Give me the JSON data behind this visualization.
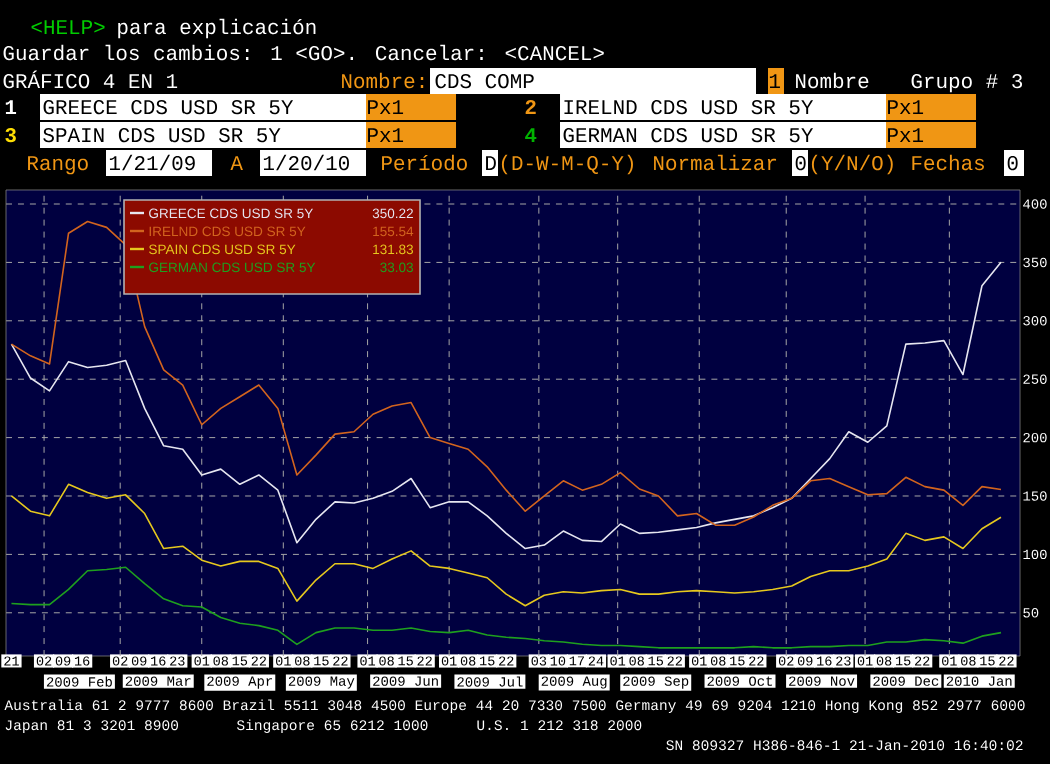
{
  "chart_data": {
    "type": "line",
    "title": "GRÁFICO 4 EN 1",
    "x": [
      "2009-01-21",
      "2009-01-28",
      "2009-02-04",
      "2009-02-11",
      "2009-02-18",
      "2009-02-25",
      "2009-03-04",
      "2009-03-11",
      "2009-03-18",
      "2009-03-25",
      "2009-04-01",
      "2009-04-08",
      "2009-04-15",
      "2009-04-22",
      "2009-04-29",
      "2009-05-06",
      "2009-05-13",
      "2009-05-20",
      "2009-05-27",
      "2009-06-03",
      "2009-06-10",
      "2009-06-17",
      "2009-06-24",
      "2009-07-01",
      "2009-07-08",
      "2009-07-15",
      "2009-07-22",
      "2009-07-29",
      "2009-08-05",
      "2009-08-12",
      "2009-08-19",
      "2009-08-26",
      "2009-09-02",
      "2009-09-09",
      "2009-09-16",
      "2009-09-23",
      "2009-09-30",
      "2009-10-07",
      "2009-10-14",
      "2009-10-21",
      "2009-10-28",
      "2009-11-04",
      "2009-11-11",
      "2009-11-18",
      "2009-11-25",
      "2009-12-02",
      "2009-12-09",
      "2009-12-16",
      "2009-12-23",
      "2009-12-30",
      "2010-01-06",
      "2010-01-13",
      "2010-01-20"
    ],
    "series": [
      {
        "name": "GREECE CDS USD SR 5Y",
        "color": "#e6e6f0",
        "values": [
          280,
          251,
          240,
          265,
          260,
          262,
          266,
          225,
          193,
          190,
          168,
          173,
          160,
          168,
          155,
          110,
          130,
          145,
          144,
          148,
          154,
          165,
          140,
          145,
          145,
          133,
          118,
          105,
          108,
          120,
          112,
          111,
          126,
          118,
          119,
          121,
          123,
          127,
          130,
          133,
          140,
          148,
          165,
          182,
          205,
          196,
          210,
          280,
          281,
          283,
          254,
          330,
          350.22
        ]
      },
      {
        "name": "IRELND CDS USD SR 5Y",
        "color": "#d2641e",
        "values": [
          280,
          270,
          263,
          375,
          385,
          380,
          365,
          295,
          258,
          245,
          211,
          225,
          235,
          245,
          225,
          168,
          185,
          203,
          205,
          220,
          227,
          230,
          200,
          195,
          190,
          175,
          155,
          137,
          150,
          163,
          155,
          160,
          170,
          156,
          150,
          133,
          135,
          125,
          125,
          132,
          142,
          148,
          163,
          165,
          158,
          151,
          152,
          166,
          158,
          155,
          142,
          158,
          155.54
        ]
      },
      {
        "name": "SPAIN CDS USD SR 5Y",
        "color": "#e6c81e",
        "values": [
          150,
          137,
          133,
          160,
          153,
          148,
          151,
          135,
          105,
          107,
          95,
          90,
          94,
          94,
          88,
          60,
          78,
          92,
          92,
          88,
          96,
          103,
          90,
          88,
          84,
          80,
          66,
          56,
          65,
          68,
          67,
          69,
          70,
          66,
          66,
          68,
          69,
          68,
          67,
          68,
          70,
          73,
          81,
          86,
          86,
          90,
          96,
          118,
          112,
          115,
          105,
          122,
          131.83
        ]
      },
      {
        "name": "GERMAN CDS USD SR 5Y",
        "color": "#1ea01e",
        "values": [
          58,
          57,
          57,
          70,
          86,
          87,
          89,
          75,
          62,
          56,
          55,
          46,
          41,
          39,
          35,
          23,
          33,
          37,
          37,
          35,
          35,
          37,
          34,
          33,
          35,
          31,
          29,
          28,
          26,
          25,
          23,
          22,
          22,
          21,
          20,
          20,
          20,
          20,
          20,
          21,
          20,
          20,
          21,
          21,
          22,
          22,
          25,
          25,
          27,
          26,
          24,
          30,
          33.03
        ]
      }
    ],
    "xlim": [
      "2009-01-19",
      "2010-01-27"
    ],
    "ylim": [
      13,
      412
    ],
    "yticks": [
      50,
      100,
      150,
      200,
      250,
      300,
      350,
      400
    ],
    "xticks": [
      {
        "value": "2009-01-21",
        "label": "21"
      },
      {
        "value": "2009-02-02",
        "label": "02"
      },
      {
        "value": "2009-02-09",
        "label": "09"
      },
      {
        "value": "2009-02-16",
        "label": "16"
      },
      {
        "value": "2009-03-02",
        "label": "02"
      },
      {
        "value": "2009-03-09",
        "label": "09"
      },
      {
        "value": "2009-03-16",
        "label": "16"
      },
      {
        "value": "2009-03-23",
        "label": "23"
      },
      {
        "value": "2009-04-01",
        "label": "01"
      },
      {
        "value": "2009-04-08",
        "label": "08"
      },
      {
        "value": "2009-04-15",
        "label": "15"
      },
      {
        "value": "2009-04-22",
        "label": "22"
      },
      {
        "value": "2009-05-01",
        "label": "01"
      },
      {
        "value": "2009-05-08",
        "label": "08"
      },
      {
        "value": "2009-05-15",
        "label": "15"
      },
      {
        "value": "2009-05-22",
        "label": "22"
      },
      {
        "value": "2009-06-01",
        "label": "01"
      },
      {
        "value": "2009-06-08",
        "label": "08"
      },
      {
        "value": "2009-06-15",
        "label": "15"
      },
      {
        "value": "2009-06-22",
        "label": "22"
      },
      {
        "value": "2009-07-01",
        "label": "01"
      },
      {
        "value": "2009-07-08",
        "label": "08"
      },
      {
        "value": "2009-07-15",
        "label": "15"
      },
      {
        "value": "2009-07-22",
        "label": "22"
      },
      {
        "value": "2009-08-03",
        "label": "03"
      },
      {
        "value": "2009-08-10",
        "label": "10"
      },
      {
        "value": "2009-08-17",
        "label": "17"
      },
      {
        "value": "2009-08-24",
        "label": "24"
      },
      {
        "value": "2009-09-01",
        "label": "01"
      },
      {
        "value": "2009-09-08",
        "label": "08"
      },
      {
        "value": "2009-09-15",
        "label": "15"
      },
      {
        "value": "2009-09-22",
        "label": "22"
      },
      {
        "value": "2009-10-01",
        "label": "01"
      },
      {
        "value": "2009-10-08",
        "label": "08"
      },
      {
        "value": "2009-10-15",
        "label": "15"
      },
      {
        "value": "2009-10-22",
        "label": "22"
      },
      {
        "value": "2009-11-02",
        "label": "02"
      },
      {
        "value": "2009-11-09",
        "label": "09"
      },
      {
        "value": "2009-11-16",
        "label": "16"
      },
      {
        "value": "2009-11-23",
        "label": "23"
      },
      {
        "value": "2009-12-01",
        "label": "01"
      },
      {
        "value": "2009-12-08",
        "label": "08"
      },
      {
        "value": "2009-12-15",
        "label": "15"
      },
      {
        "value": "2009-12-22",
        "label": "22"
      },
      {
        "value": "2010-01-01",
        "label": "01"
      },
      {
        "value": "2010-01-08",
        "label": "08"
      },
      {
        "value": "2010-01-15",
        "label": "15"
      },
      {
        "value": "2010-01-22",
        "label": "22"
      }
    ],
    "x2lim": [
      "2009-01-19",
      "2010-01-27"
    ],
    "x2ticks": [
      {
        "value": "2009-02-15",
        "label": "2009 Feb"
      },
      {
        "value": "2009-03-16",
        "label": "2009 Mar"
      },
      {
        "value": "2009-04-15",
        "label": "2009 Apr"
      },
      {
        "value": "2009-05-15",
        "label": "2009 May"
      },
      {
        "value": "2009-06-15",
        "label": "2009 Jun"
      },
      {
        "value": "2009-07-16",
        "label": "2009 Jul"
      },
      {
        "value": "2009-08-16",
        "label": "2009 Aug"
      },
      {
        "value": "2009-09-15",
        "label": "2009 Sep"
      },
      {
        "value": "2009-10-16",
        "label": "2009 Oct"
      },
      {
        "value": "2009-11-15",
        "label": "2009 Nov"
      },
      {
        "value": "2009-12-16",
        "label": "2009 Dec"
      },
      {
        "value": "2010-01-12",
        "label": "2010 Jan"
      }
    ],
    "grid": true,
    "legend": "top left",
    "annotations": [
      "<HELP>",
      "para explicación",
      "Guardar los cambios: 1 <GO>. Cancelar: <CANCEL>",
      "Nombre:",
      "CDS COMP",
      "1",
      "Nombre",
      "Grupo # 3",
      "1",
      "2",
      "3",
      "4",
      "Px1",
      "Px1",
      "Px1",
      "Px1",
      "Rango",
      "1/21/09",
      "A",
      "1/20/10",
      "Período",
      "D",
      "(D-W-M-Q-Y)",
      "Normalizar",
      "0",
      "(Y/N/O)",
      "Fechas",
      "0",
      "350.22",
      "155.54",
      "131.83",
      "33.03",
      "Australia 61 2 9777 8600 Brazil 5511 3048 4500 Europe 44 20 7330 7500 Germany 49 69 9204 1210 Hong Kong 852 2977 6000",
      "Japan 81 3 3201 8900",
      "Singapore 65 6212 1000",
      "U.S. 1 212 318 2000",
      "SN 809327 H386-846-1 21-Jan-2010 16:40:02"
    ]
  }
}
